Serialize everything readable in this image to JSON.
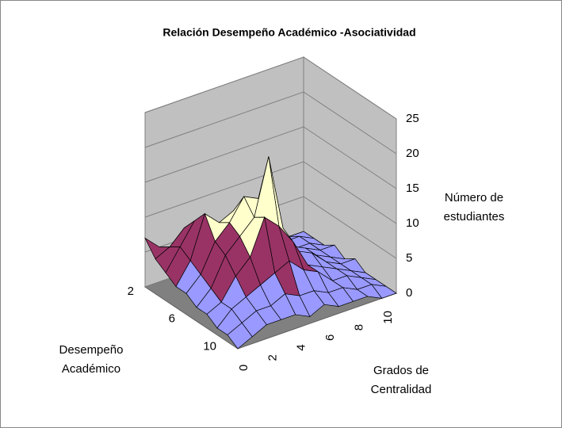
{
  "chart_data": {
    "type": "surface",
    "title": "Relación Desempeño Académico -Asociatividad",
    "z_label": [
      "Número de",
      "estudiantes"
    ],
    "y_label": [
      "Desempeño",
      "Académico"
    ],
    "x_label": [
      "Grados de",
      "Centralidad"
    ],
    "row_categories": [
      2,
      null,
      null,
      null,
      6,
      null,
      null,
      null,
      10,
      null
    ],
    "col_categories": [
      0,
      null,
      2,
      null,
      4,
      null,
      6,
      null,
      8,
      null,
      10,
      null
    ],
    "values": [
      [
        7,
        5,
        4,
        4,
        3,
        2,
        2,
        1,
        1,
        1,
        0,
        0
      ],
      [
        5,
        6,
        8,
        6,
        5,
        4,
        3,
        2,
        1,
        1,
        1,
        0
      ],
      [
        4,
        7,
        10,
        9,
        8,
        6,
        4,
        3,
        2,
        1,
        1,
        0
      ],
      [
        3,
        6,
        12,
        10,
        11,
        9,
        6,
        4,
        3,
        2,
        1,
        1
      ],
      [
        3,
        5,
        9,
        11,
        14,
        13,
        7,
        5,
        3,
        2,
        1,
        0
      ],
      [
        2,
        4,
        8,
        10,
        12,
        20,
        9,
        5,
        4,
        2,
        1,
        1
      ],
      [
        2,
        3,
        6,
        8,
        13,
        11,
        8,
        4,
        3,
        2,
        1,
        0
      ],
      [
        1,
        3,
        4,
        5,
        6,
        7,
        5,
        4,
        2,
        2,
        1,
        0
      ],
      [
        1,
        2,
        3,
        3,
        4,
        3,
        3,
        2,
        2,
        1,
        1,
        0
      ],
      [
        0,
        1,
        2,
        2,
        2,
        1,
        2,
        1,
        1,
        1,
        0,
        0
      ]
    ],
    "colors": [
      "#9999ff",
      "#993366",
      "#ffffcc",
      "#ccffff",
      "#660066"
    ],
    "zlim": [
      0,
      25
    ],
    "zticks": [
      0,
      5,
      10,
      15,
      20,
      25
    ],
    "grid": true
  }
}
